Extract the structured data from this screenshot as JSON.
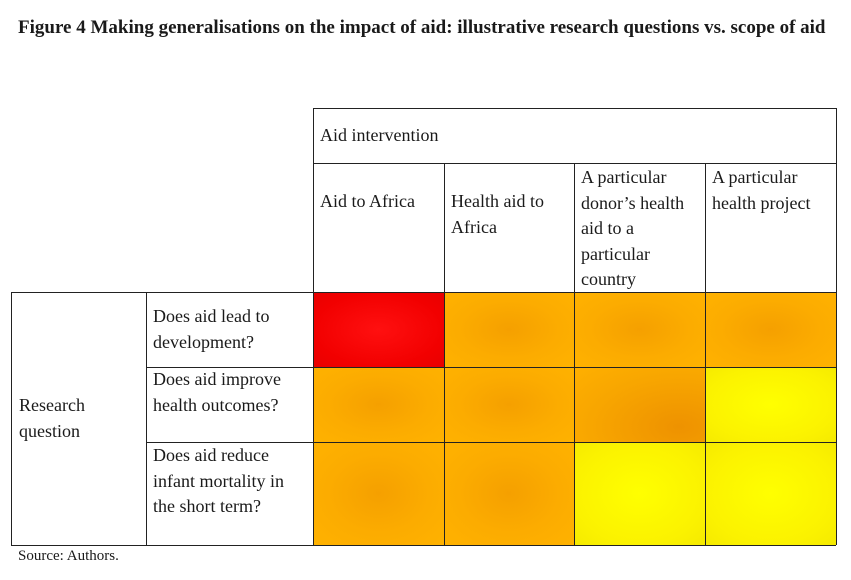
{
  "title": "Figure 4 Making generalisations on the impact of aid: illustrative research questions vs. scope of aid",
  "header": {
    "group_label": "Aid intervention",
    "columns": [
      "Aid to Africa",
      "Health aid to Africa",
      "A particular donor’s health aid to a particular country",
      "A particular health project"
    ]
  },
  "row_group_label": "Research question",
  "rows": [
    {
      "question": "Does aid lead to development?",
      "cells": [
        "red",
        "orange",
        "orange",
        "orange"
      ]
    },
    {
      "question": "Does aid improve health outcomes?",
      "cells": [
        "orange",
        "orange",
        "orange",
        "yellow"
      ]
    },
    {
      "question": "Does aid reduce infant mortality in the short term?",
      "cells": [
        "orange",
        "orange",
        "yellow",
        "yellow"
      ]
    }
  ],
  "colors": {
    "red": "#f20000",
    "orange": "#fcac00",
    "yellow": "#ffff00"
  },
  "source": "Source: Authors."
}
